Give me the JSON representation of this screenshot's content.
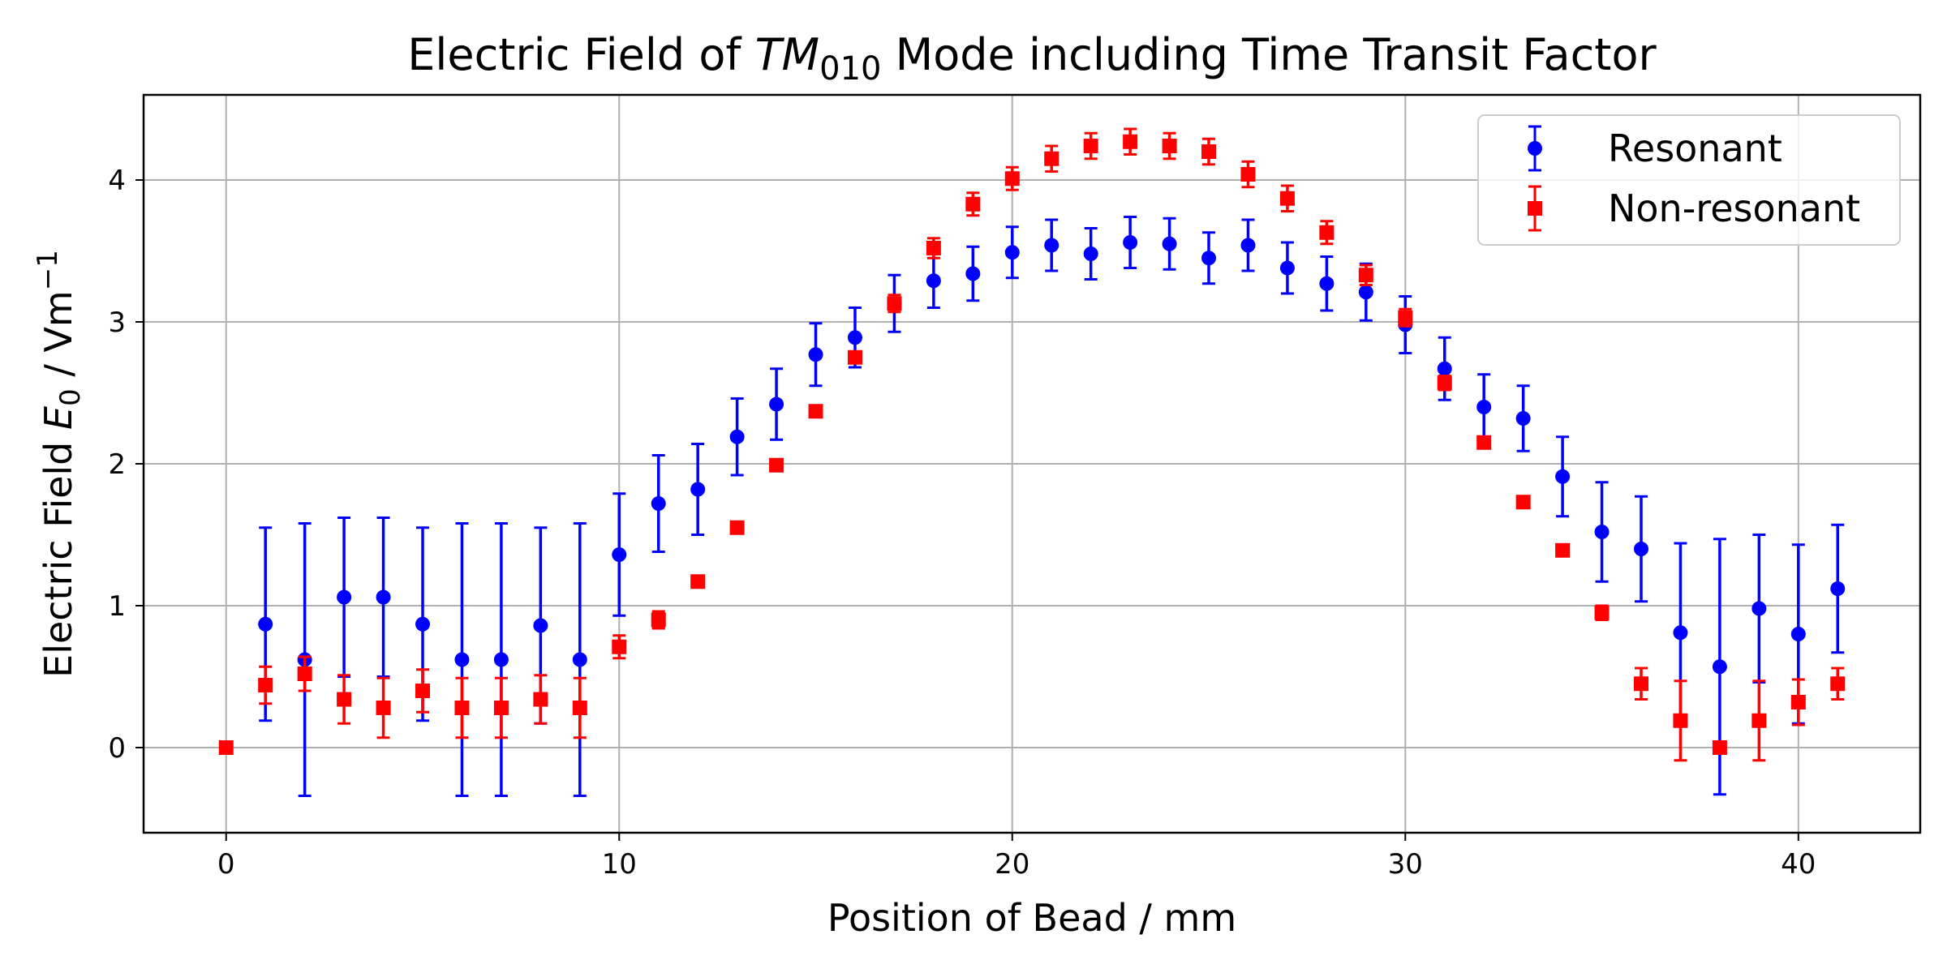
{
  "chart_data": {
    "type": "scatter",
    "title_prefix": "Electric Field of ",
    "title_math_base": "TM",
    "title_math_sub": "010",
    "title_suffix": " Mode including Time Transit Factor",
    "xlabel": "Position of Bead / mm",
    "ylabel_prefix": "Electric Field ",
    "ylabel_math_base": "E",
    "ylabel_math_sub": "0",
    "ylabel_suffix": " / Vm",
    "ylabel_sup": "−1",
    "xlim": [
      -2.1,
      43.1
    ],
    "ylim": [
      -0.6,
      4.6
    ],
    "xticks": [
      0,
      10,
      20,
      30,
      40
    ],
    "yticks": [
      0,
      1,
      2,
      3,
      4
    ],
    "grid": true,
    "legend_position": "top-right",
    "series": [
      {
        "name": "Resonant",
        "marker": "circle",
        "color": "#0000ff",
        "x": [
          1,
          2,
          3,
          4,
          5,
          6,
          7,
          8,
          9,
          10,
          11,
          12,
          13,
          14,
          15,
          16,
          17,
          18,
          19,
          20,
          21,
          22,
          23,
          24,
          25,
          26,
          27,
          28,
          29,
          30,
          31,
          32,
          33,
          34,
          35,
          36,
          37,
          38,
          39,
          40,
          41
        ],
        "y": [
          0.87,
          0.62,
          1.06,
          1.06,
          0.87,
          0.62,
          0.62,
          0.86,
          0.62,
          1.36,
          1.72,
          1.82,
          2.19,
          2.42,
          2.77,
          2.89,
          3.13,
          3.29,
          3.34,
          3.49,
          3.54,
          3.48,
          3.56,
          3.55,
          3.45,
          3.54,
          3.38,
          3.27,
          3.21,
          2.98,
          2.67,
          2.4,
          2.32,
          1.91,
          1.52,
          1.4,
          0.81,
          0.57,
          0.98,
          0.8,
          1.12
        ],
        "err": [
          0.68,
          0.96,
          0.56,
          0.56,
          0.68,
          0.96,
          0.96,
          0.69,
          0.96,
          0.43,
          0.34,
          0.32,
          0.27,
          0.25,
          0.22,
          0.21,
          0.2,
          0.19,
          0.19,
          0.18,
          0.18,
          0.18,
          0.18,
          0.18,
          0.18,
          0.18,
          0.18,
          0.19,
          0.2,
          0.2,
          0.22,
          0.23,
          0.23,
          0.28,
          0.35,
          0.37,
          0.63,
          0.9,
          0.52,
          0.63,
          0.45
        ]
      },
      {
        "name": "Non-resonant",
        "marker": "square",
        "color": "#ff0000",
        "x": [
          0,
          1,
          2,
          3,
          4,
          5,
          6,
          7,
          8,
          9,
          10,
          11,
          12,
          13,
          14,
          15,
          16,
          17,
          18,
          19,
          20,
          21,
          22,
          23,
          24,
          25,
          26,
          27,
          28,
          29,
          30,
          31,
          32,
          33,
          34,
          35,
          36,
          37,
          38,
          39,
          40,
          41
        ],
        "y": [
          0.0,
          0.44,
          0.52,
          0.34,
          0.28,
          0.4,
          0.28,
          0.28,
          0.34,
          0.28,
          0.71,
          0.9,
          1.17,
          1.55,
          1.99,
          2.37,
          2.75,
          3.13,
          3.52,
          3.83,
          4.01,
          4.15,
          4.24,
          4.27,
          4.24,
          4.2,
          4.04,
          3.87,
          3.63,
          3.33,
          3.03,
          2.57,
          2.15,
          1.73,
          1.39,
          0.95,
          0.45,
          0.19,
          0.0,
          0.19,
          0.32,
          0.45
        ],
        "err": [
          0.0,
          0.13,
          0.12,
          0.17,
          0.21,
          0.15,
          0.21,
          0.21,
          0.17,
          0.21,
          0.08,
          0.06,
          0.04,
          0.03,
          0.02,
          0.03,
          0.04,
          0.06,
          0.07,
          0.08,
          0.08,
          0.09,
          0.09,
          0.09,
          0.09,
          0.09,
          0.09,
          0.09,
          0.08,
          0.07,
          0.06,
          0.05,
          0.04,
          0.03,
          0.03,
          0.05,
          0.11,
          0.28,
          0.0,
          0.28,
          0.16,
          0.11
        ]
      }
    ]
  }
}
